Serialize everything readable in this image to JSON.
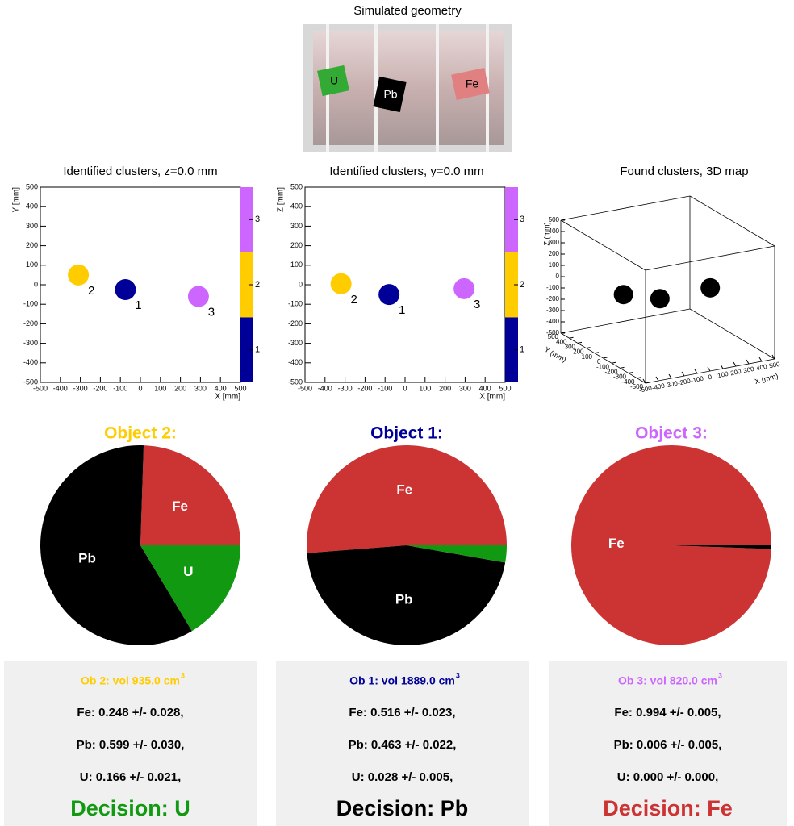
{
  "geometry": {
    "title": "Simulated geometry",
    "labels": [
      "U",
      "Pb",
      "Fe"
    ]
  },
  "chart_data": [
    {
      "type": "scatter",
      "title": "Identified clusters, z=0.0 mm",
      "xlabel": "X [mm]",
      "ylabel": "Y [mm]",
      "xlim": [
        -500,
        500
      ],
      "ylim": [
        -500,
        500
      ],
      "xticks": [
        -500,
        -400,
        -300,
        -200,
        -100,
        0,
        100,
        200,
        300,
        400,
        500
      ],
      "yticks": [
        -500,
        -400,
        -300,
        -200,
        -100,
        0,
        100,
        200,
        300,
        400,
        500
      ],
      "series": [
        {
          "name": "2",
          "color": "#ffcc00",
          "x": [
            -310
          ],
          "values": [
            50
          ]
        },
        {
          "name": "1",
          "color": "#000099",
          "x": [
            -75
          ],
          "values": [
            -25
          ]
        },
        {
          "name": "3",
          "color": "#cc66ff",
          "x": [
            290
          ],
          "values": [
            -60
          ]
        }
      ],
      "colorbar": {
        "zlim": [
          0.5,
          3.5
        ],
        "zticks": [
          1,
          2,
          3
        ],
        "colors": [
          "#000099",
          "#ffcc00",
          "#cc66ff"
        ]
      }
    },
    {
      "type": "scatter",
      "title": "Identified clusters, y=0.0 mm",
      "xlabel": "X [mm]",
      "ylabel": "Z [mm]",
      "xlim": [
        -500,
        500
      ],
      "ylim": [
        -500,
        500
      ],
      "xticks": [
        -500,
        -400,
        -300,
        -200,
        -100,
        0,
        100,
        200,
        300,
        400,
        500
      ],
      "yticks": [
        -500,
        -400,
        -300,
        -200,
        -100,
        0,
        100,
        200,
        300,
        400,
        500
      ],
      "series": [
        {
          "name": "2",
          "color": "#ffcc00",
          "x": [
            -320
          ],
          "values": [
            5
          ]
        },
        {
          "name": "1",
          "color": "#000099",
          "x": [
            -80
          ],
          "values": [
            -50
          ]
        },
        {
          "name": "3",
          "color": "#cc66ff",
          "x": [
            295
          ],
          "values": [
            -20
          ]
        }
      ],
      "colorbar": {
        "zlim": [
          0.5,
          3.5
        ],
        "zticks": [
          1,
          2,
          3
        ],
        "colors": [
          "#000099",
          "#ffcc00",
          "#cc66ff"
        ]
      }
    },
    {
      "type": "scatter3d",
      "title": "Found clusters, 3D map",
      "xlabel": "X (mm)",
      "ylabel": "Y (mm)",
      "zlabel": "Z (mm)",
      "xlim": [
        -500,
        500
      ],
      "ylim": [
        -500,
        500
      ],
      "zlim": [
        -500,
        500
      ],
      "xticks": [
        -500,
        -400,
        -300,
        -200,
        -100,
        0,
        100,
        200,
        300,
        400,
        500
      ],
      "yticks": [
        -500,
        -400,
        -300,
        -200,
        -100,
        0,
        100,
        200,
        300,
        400,
        500
      ],
      "zticks": [
        -500,
        -400,
        -300,
        -200,
        -100,
        0,
        100,
        200,
        300,
        400,
        500
      ],
      "series": [
        {
          "color": "#000000",
          "x": [
            -310,
            -80,
            290
          ],
          "y": [
            50,
            -30,
            -60
          ],
          "values": [
            0,
            -50,
            -20
          ]
        }
      ]
    },
    {
      "type": "pie",
      "title": "Object 2:",
      "title_color": "#ffcc00",
      "categories": [
        "Fe",
        "Pb",
        "U"
      ],
      "values": [
        0.248,
        0.599,
        0.166
      ],
      "colors": [
        "#cc3333",
        "#000000",
        "#119911"
      ]
    },
    {
      "type": "pie",
      "title": "Object 1:",
      "title_color": "#000099",
      "categories": [
        "Fe",
        "Pb",
        null
      ],
      "values": [
        0.516,
        0.463,
        0.028
      ],
      "colors": [
        "#cc3333",
        "#000000",
        "#119911"
      ]
    },
    {
      "type": "pie",
      "title": "Object 3:",
      "title_color": "#cc66ff",
      "categories": [
        "Fe",
        null,
        null
      ],
      "values": [
        0.994,
        0.006,
        0.0
      ],
      "colors": [
        "#cc3333",
        "#000000",
        "#119911"
      ]
    }
  ],
  "panels": [
    {
      "title": "Ob 2: vol 935.0 cm",
      "title_sup": "3",
      "color": "#ffcc00",
      "lines": [
        "Fe:  0.248 +/- 0.028,",
        "Pb:  0.599 +/- 0.030,",
        "U:  0.166 +/- 0.021,"
      ],
      "decision": "Decision: U",
      "decision_color": "#119911"
    },
    {
      "title": "Ob 1: vol 1889.0 cm",
      "title_sup": "3",
      "color": "#000099",
      "lines": [
        "Fe:  0.516 +/- 0.023,",
        "Pb:  0.463 +/- 0.022,",
        "U:  0.028 +/- 0.005,"
      ],
      "decision": "Decision: Pb",
      "decision_color": "#000000"
    },
    {
      "title": "Ob 3: vol 820.0 cm",
      "title_sup": "3",
      "color": "#cc66ff",
      "lines": [
        "Fe:  0.994 +/- 0.005,",
        "Pb:  0.006 +/- 0.005,",
        "U:  0.000 +/- 0.000,"
      ],
      "decision": "Decision: Fe",
      "decision_color": "#cc3333"
    }
  ]
}
